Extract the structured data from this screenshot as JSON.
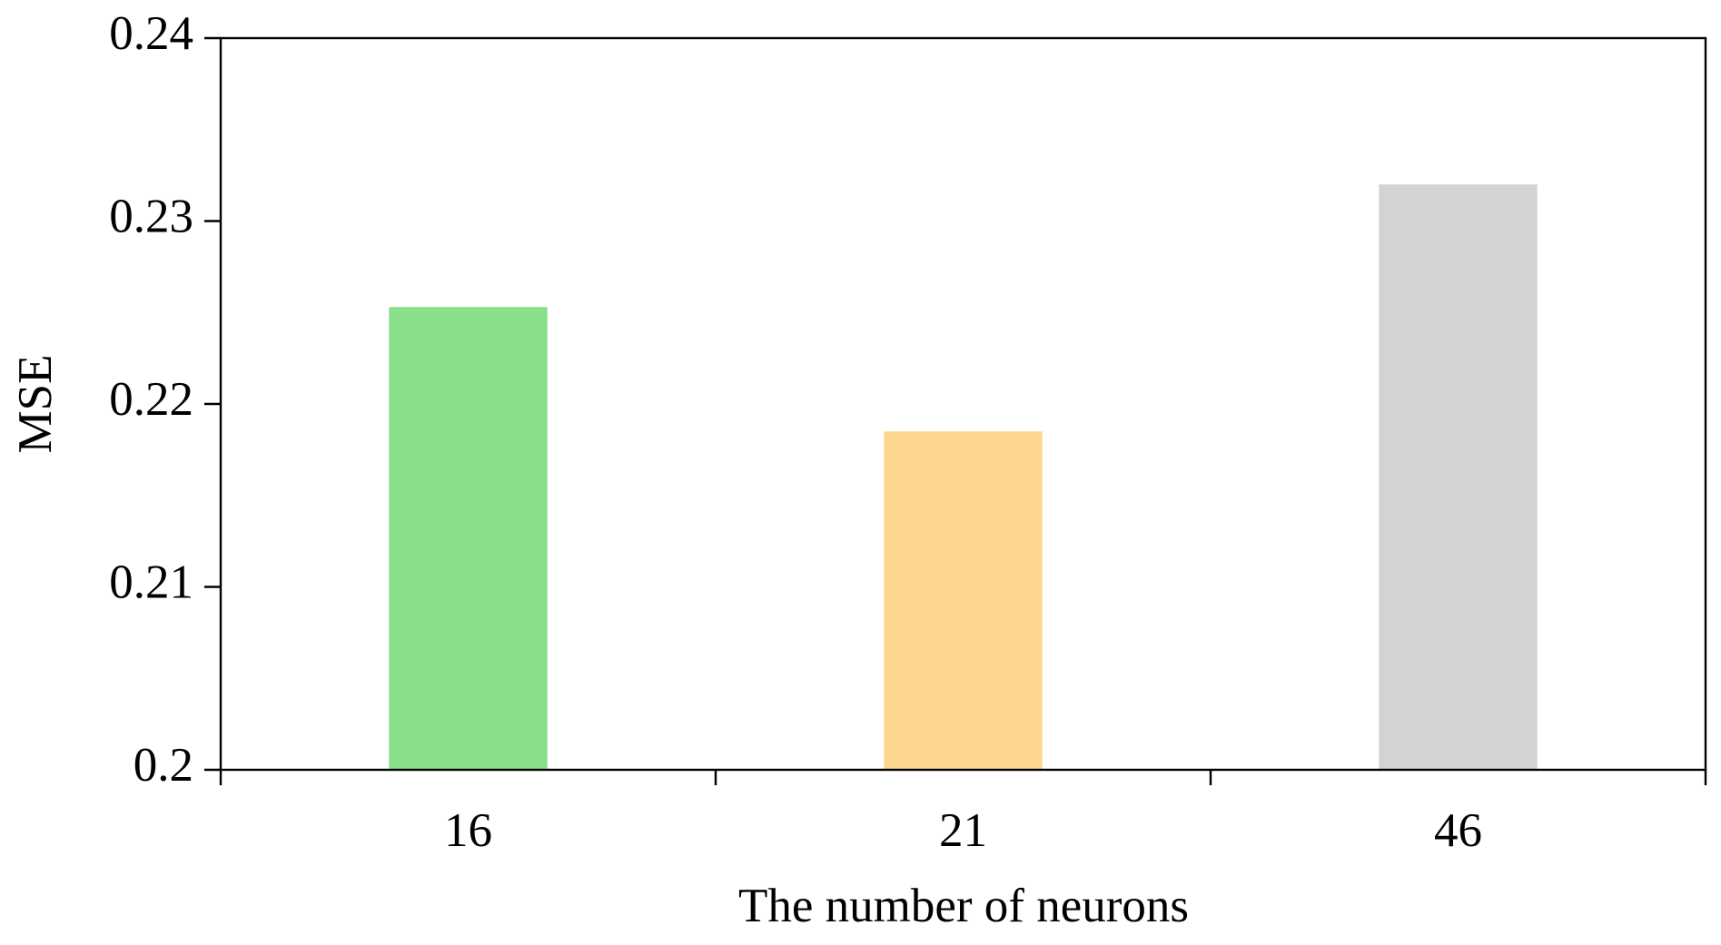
{
  "chart_data": {
    "type": "bar",
    "x_label": "The number of neurons",
    "y_label": "MSE",
    "categories": [
      "16",
      "21",
      "46"
    ],
    "values": [
      0.2253,
      0.2185,
      0.232
    ],
    "colors": [
      "#8ae08a",
      "#fdd78f",
      "#d3d3d3"
    ],
    "ylim": [
      0.2,
      0.24
    ],
    "yticks": [
      0.2,
      0.21,
      0.22,
      0.23,
      0.24
    ]
  }
}
